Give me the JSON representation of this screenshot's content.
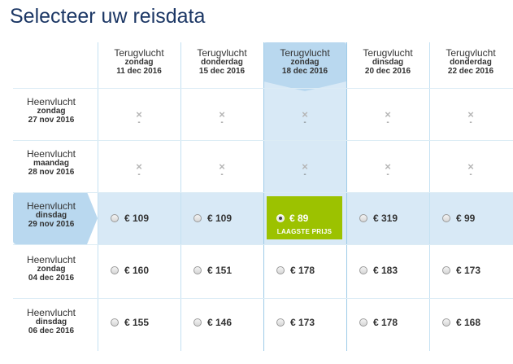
{
  "title": "Selecteer uw reisdata",
  "columns": [
    {
      "label": "Terugvlucht",
      "day": "zondag",
      "date": "11 dec 2016"
    },
    {
      "label": "Terugvlucht",
      "day": "donderdag",
      "date": "15 dec 2016"
    },
    {
      "label": "Terugvlucht",
      "day": "zondag",
      "date": "18 dec 2016"
    },
    {
      "label": "Terugvlucht",
      "day": "dinsdag",
      "date": "20 dec 2016"
    },
    {
      "label": "Terugvlucht",
      "day": "donderdag",
      "date": "22 dec 2016"
    }
  ],
  "rows": [
    {
      "label": "Heenvlucht",
      "day": "zondag",
      "date": "27 nov 2016"
    },
    {
      "label": "Heenvlucht",
      "day": "maandag",
      "date": "28 nov 2016"
    },
    {
      "label": "Heenvlucht",
      "day": "dinsdag",
      "date": "29 nov 2016"
    },
    {
      "label": "Heenvlucht",
      "day": "zondag",
      "date": "04 dec 2016"
    },
    {
      "label": "Heenvlucht",
      "day": "dinsdag",
      "date": "06 dec 2016"
    }
  ],
  "unavailable": {
    "mark": "×",
    "dash": "-"
  },
  "prices": {
    "r2": [
      "€ 109",
      "€ 109",
      "€ 89",
      "€ 319",
      "€ 99"
    ],
    "r3": [
      "€ 160",
      "€ 151",
      "€ 178",
      "€ 183",
      "€ 173"
    ],
    "r4": [
      "€ 155",
      "€ 146",
      "€ 173",
      "€ 178",
      "€ 168"
    ]
  },
  "best_price_label": "LAAGSTE PRIJS",
  "colors": {
    "accent": "#9cc200",
    "selected": "#b9d8ef",
    "text": "#1c3765"
  }
}
